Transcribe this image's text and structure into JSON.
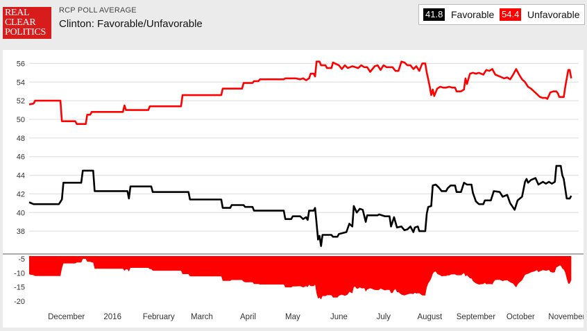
{
  "header": {
    "logo_lines": [
      "REAL",
      "CLEAR",
      "POLITICS"
    ],
    "subtitle": "RCP POLL AVERAGE",
    "title": "Clinton: Favorable/Unfavorable"
  },
  "legend": [
    {
      "value": "41.8",
      "label": "Favorable",
      "color": "#000000"
    },
    {
      "value": "54.4",
      "label": "Unfavorable",
      "color": "#ff0000"
    }
  ],
  "chart_data": {
    "type": "line",
    "x_type": "date",
    "x_ticks": [
      {
        "date": "2015-12-01",
        "label": "December"
      },
      {
        "date": "2016-01-01",
        "label": "2016"
      },
      {
        "date": "2016-02-01",
        "label": "February"
      },
      {
        "date": "2016-03-01",
        "label": "March"
      },
      {
        "date": "2016-04-01",
        "label": "April"
      },
      {
        "date": "2016-05-01",
        "label": "May"
      },
      {
        "date": "2016-06-01",
        "label": "June"
      },
      {
        "date": "2016-07-01",
        "label": "July"
      },
      {
        "date": "2016-08-01",
        "label": "August"
      },
      {
        "date": "2016-09-01",
        "label": "September"
      },
      {
        "date": "2016-10-01",
        "label": "October"
      },
      {
        "date": "2016-11-01",
        "label": "November"
      }
    ],
    "xlim": [
      "2015-11-06",
      "2016-11-09"
    ],
    "panels": [
      {
        "name": "main",
        "ylim": [
          36,
          57
        ],
        "yticks": [
          38,
          40,
          42,
          44,
          46,
          48,
          50,
          52,
          54,
          56
        ],
        "grid": true
      },
      {
        "name": "spread",
        "ylim": [
          -21,
          -4
        ],
        "yticks": [
          -5,
          -10,
          -15,
          -20
        ],
        "grid": false
      }
    ],
    "series": [
      {
        "name": "Favorable",
        "color": "#000000",
        "points": [
          [
            "2015-11-06",
            41.1
          ],
          [
            "2015-11-09",
            40.9
          ],
          [
            "2015-11-26",
            40.9
          ],
          [
            "2015-11-28",
            41.4
          ],
          [
            "2015-11-29",
            43.2
          ],
          [
            "2015-12-11",
            43.2
          ],
          [
            "2015-12-12",
            44.5
          ],
          [
            "2015-12-19",
            44.5
          ],
          [
            "2015-12-20",
            42.3
          ],
          [
            "2016-01-11",
            42.3
          ],
          [
            "2016-01-12",
            41.5
          ],
          [
            "2016-01-13",
            42.8
          ],
          [
            "2016-01-27",
            42.8
          ],
          [
            "2016-01-28",
            42.2
          ],
          [
            "2016-02-21",
            42.2
          ],
          [
            "2016-02-22",
            41.4
          ],
          [
            "2016-03-14",
            41.4
          ],
          [
            "2016-03-15",
            40.5
          ],
          [
            "2016-03-20",
            40.5
          ],
          [
            "2016-03-21",
            40.8
          ],
          [
            "2016-03-29",
            40.8
          ],
          [
            "2016-03-30",
            40.6
          ],
          [
            "2016-04-04",
            40.6
          ],
          [
            "2016-04-05",
            40.2
          ],
          [
            "2016-04-25",
            40.2
          ],
          [
            "2016-04-26",
            39.3
          ],
          [
            "2016-04-30",
            39.3
          ],
          [
            "2016-05-01",
            39.6
          ],
          [
            "2016-05-06",
            39.6
          ],
          [
            "2016-05-08",
            39.3
          ],
          [
            "2016-05-10",
            39.5
          ],
          [
            "2016-05-11",
            39.2
          ],
          [
            "2016-05-12",
            40.2
          ],
          [
            "2016-05-15",
            40.2
          ],
          [
            "2016-05-16",
            40.5
          ],
          [
            "2016-05-17",
            38.9
          ],
          [
            "2016-05-18",
            37.1
          ],
          [
            "2016-05-19",
            37.5
          ],
          [
            "2016-05-20",
            36.4
          ],
          [
            "2016-05-21",
            37.6
          ],
          [
            "2016-05-27",
            37.6
          ],
          [
            "2016-05-28",
            37.4
          ],
          [
            "2016-05-31",
            37.4
          ],
          [
            "2016-06-01",
            37.7
          ],
          [
            "2016-06-06",
            37.9
          ],
          [
            "2016-06-08",
            38.8
          ],
          [
            "2016-06-10",
            38.5
          ],
          [
            "2016-06-11",
            40.7
          ],
          [
            "2016-06-13",
            40.0
          ],
          [
            "2016-06-15",
            40.4
          ],
          [
            "2016-06-17",
            40.3
          ],
          [
            "2016-06-19",
            39.0
          ],
          [
            "2016-06-20",
            39.7
          ],
          [
            "2016-06-27",
            39.7
          ],
          [
            "2016-06-28",
            39.8
          ],
          [
            "2016-07-02",
            39.6
          ],
          [
            "2016-07-05",
            39.6
          ],
          [
            "2016-07-06",
            38.5
          ],
          [
            "2016-07-08",
            39.5
          ],
          [
            "2016-07-10",
            38.4
          ],
          [
            "2016-07-13",
            38.5
          ],
          [
            "2016-07-15",
            38.1
          ],
          [
            "2016-07-17",
            38.2
          ],
          [
            "2016-07-19",
            38.5
          ],
          [
            "2016-07-21",
            37.9
          ],
          [
            "2016-07-22",
            38.4
          ],
          [
            "2016-07-24",
            38.5
          ],
          [
            "2016-07-25",
            38.0
          ],
          [
            "2016-07-29",
            38.0
          ],
          [
            "2016-07-30",
            39.9
          ],
          [
            "2016-07-31",
            40.6
          ],
          [
            "2016-08-02",
            40.7
          ],
          [
            "2016-08-03",
            42.9
          ],
          [
            "2016-08-05",
            43.0
          ],
          [
            "2016-08-07",
            42.7
          ],
          [
            "2016-08-09",
            42.3
          ],
          [
            "2016-08-12",
            42.3
          ],
          [
            "2016-08-13",
            42.6
          ],
          [
            "2016-08-15",
            42.9
          ],
          [
            "2016-08-18",
            42.9
          ],
          [
            "2016-08-19",
            42.2
          ],
          [
            "2016-08-22",
            42.2
          ],
          [
            "2016-08-24",
            43.2
          ],
          [
            "2016-08-26",
            43.0
          ],
          [
            "2016-08-29",
            43.0
          ],
          [
            "2016-08-30",
            42.1
          ],
          [
            "2016-09-01",
            41.2
          ],
          [
            "2016-09-03",
            40.9
          ],
          [
            "2016-09-06",
            40.9
          ],
          [
            "2016-09-07",
            41.3
          ],
          [
            "2016-09-11",
            41.3
          ],
          [
            "2016-09-13",
            42.3
          ],
          [
            "2016-09-17",
            42.2
          ],
          [
            "2016-09-19",
            41.7
          ],
          [
            "2016-09-22",
            41.9
          ],
          [
            "2016-09-24",
            41.0
          ],
          [
            "2016-09-27",
            40.3
          ],
          [
            "2016-09-29",
            41.3
          ],
          [
            "2016-10-02",
            41.7
          ],
          [
            "2016-10-04",
            43.3
          ],
          [
            "2016-10-05",
            43.6
          ],
          [
            "2016-10-06",
            43.2
          ],
          [
            "2016-10-08",
            43.5
          ],
          [
            "2016-10-11",
            43.7
          ],
          [
            "2016-10-13",
            43.0
          ],
          [
            "2016-10-16",
            43.3
          ],
          [
            "2016-10-18",
            43.1
          ],
          [
            "2016-10-20",
            43.3
          ],
          [
            "2016-10-22",
            43.1
          ],
          [
            "2016-10-24",
            43.3
          ],
          [
            "2016-10-25",
            45.0
          ],
          [
            "2016-10-28",
            45.0
          ],
          [
            "2016-10-29",
            44.0
          ],
          [
            "2016-10-30",
            43.6
          ],
          [
            "2016-11-01",
            41.5
          ],
          [
            "2016-11-03",
            41.5
          ],
          [
            "2016-11-04",
            41.8
          ]
        ]
      },
      {
        "name": "Unfavorable",
        "color": "#ff0000",
        "points": [
          [
            "2015-11-06",
            51.6
          ],
          [
            "2015-11-09",
            51.7
          ],
          [
            "2015-11-10",
            52.0
          ],
          [
            "2015-11-27",
            52.0
          ],
          [
            "2015-11-28",
            49.8
          ],
          [
            "2015-12-07",
            49.8
          ],
          [
            "2015-12-08",
            49.5
          ],
          [
            "2015-12-14",
            49.5
          ],
          [
            "2015-12-15",
            50.5
          ],
          [
            "2015-12-17",
            50.5
          ],
          [
            "2015-12-18",
            50.8
          ],
          [
            "2016-01-08",
            50.8
          ],
          [
            "2016-01-09",
            51.5
          ],
          [
            "2016-01-10",
            51.0
          ],
          [
            "2016-01-25",
            51.0
          ],
          [
            "2016-01-26",
            51.4
          ],
          [
            "2016-02-16",
            51.4
          ],
          [
            "2016-02-17",
            52.6
          ],
          [
            "2016-03-14",
            52.6
          ],
          [
            "2016-03-15",
            53.3
          ],
          [
            "2016-03-28",
            53.3
          ],
          [
            "2016-03-29",
            53.9
          ],
          [
            "2016-04-04",
            53.9
          ],
          [
            "2016-04-05",
            54.1
          ],
          [
            "2016-04-08",
            54.1
          ],
          [
            "2016-04-09",
            54.3
          ],
          [
            "2016-04-25",
            54.3
          ],
          [
            "2016-04-26",
            54.4
          ],
          [
            "2016-05-03",
            54.4
          ],
          [
            "2016-05-06",
            54.3
          ],
          [
            "2016-05-08",
            54.4
          ],
          [
            "2016-05-10",
            54.2
          ],
          [
            "2016-05-12",
            54.4
          ],
          [
            "2016-05-13",
            54.9
          ],
          [
            "2016-05-15",
            54.9
          ],
          [
            "2016-05-16",
            54.6
          ],
          [
            "2016-05-17",
            56.2
          ],
          [
            "2016-05-19",
            56.2
          ],
          [
            "2016-05-20",
            55.8
          ],
          [
            "2016-05-23",
            55.8
          ],
          [
            "2016-05-24",
            55.5
          ],
          [
            "2016-05-27",
            55.5
          ],
          [
            "2016-05-28",
            56.1
          ],
          [
            "2016-06-01",
            55.8
          ],
          [
            "2016-06-03",
            55.4
          ],
          [
            "2016-06-05",
            55.8
          ],
          [
            "2016-06-07",
            55.5
          ],
          [
            "2016-06-10",
            55.7
          ],
          [
            "2016-06-12",
            55.6
          ],
          [
            "2016-06-14",
            55.5
          ],
          [
            "2016-06-16",
            55.8
          ],
          [
            "2016-06-18",
            55.6
          ],
          [
            "2016-06-20",
            55.6
          ],
          [
            "2016-06-22",
            55.1
          ],
          [
            "2016-06-25",
            55.7
          ],
          [
            "2016-06-27",
            55.8
          ],
          [
            "2016-06-29",
            55.3
          ],
          [
            "2016-07-01",
            55.8
          ],
          [
            "2016-07-03",
            55.6
          ],
          [
            "2016-07-05",
            55.6
          ],
          [
            "2016-07-07",
            55.6
          ],
          [
            "2016-07-09",
            55.2
          ],
          [
            "2016-07-11",
            55.2
          ],
          [
            "2016-07-13",
            56.2
          ],
          [
            "2016-07-15",
            56.1
          ],
          [
            "2016-07-17",
            55.8
          ],
          [
            "2016-07-19",
            55.8
          ],
          [
            "2016-07-21",
            55.4
          ],
          [
            "2016-07-23",
            55.7
          ],
          [
            "2016-07-25",
            55.2
          ],
          [
            "2016-07-27",
            56.0
          ],
          [
            "2016-07-29",
            56.0
          ],
          [
            "2016-07-30",
            55.0
          ],
          [
            "2016-07-31",
            54.3
          ],
          [
            "2016-08-01",
            53.5
          ],
          [
            "2016-08-02",
            52.6
          ],
          [
            "2016-08-03",
            53.2
          ],
          [
            "2016-08-04",
            52.5
          ],
          [
            "2016-08-06",
            53.3
          ],
          [
            "2016-08-08",
            53.5
          ],
          [
            "2016-08-10",
            53.4
          ],
          [
            "2016-08-12",
            53.4
          ],
          [
            "2016-08-14",
            53.5
          ],
          [
            "2016-08-16",
            53.4
          ],
          [
            "2016-08-18",
            53.4
          ],
          [
            "2016-08-19",
            53.0
          ],
          [
            "2016-08-22",
            53.0
          ],
          [
            "2016-08-24",
            53.2
          ],
          [
            "2016-08-25",
            54.4
          ],
          [
            "2016-08-26",
            53.8
          ],
          [
            "2016-08-28",
            54.9
          ],
          [
            "2016-08-30",
            55.0
          ],
          [
            "2016-09-01",
            54.9
          ],
          [
            "2016-09-03",
            55.0
          ],
          [
            "2016-09-06",
            54.8
          ],
          [
            "2016-09-08",
            55.3
          ],
          [
            "2016-09-10",
            55.2
          ],
          [
            "2016-09-12",
            55.4
          ],
          [
            "2016-09-14",
            54.8
          ],
          [
            "2016-09-17",
            54.6
          ],
          [
            "2016-09-20",
            54.4
          ],
          [
            "2016-09-22",
            54.5
          ],
          [
            "2016-09-24",
            54.3
          ],
          [
            "2016-09-26",
            54.8
          ],
          [
            "2016-09-28",
            55.4
          ],
          [
            "2016-09-30",
            54.8
          ],
          [
            "2016-10-02",
            54.3
          ],
          [
            "2016-10-04",
            54.0
          ],
          [
            "2016-10-06",
            53.5
          ],
          [
            "2016-10-08",
            53.3
          ],
          [
            "2016-10-10",
            53.0
          ],
          [
            "2016-10-12",
            52.7
          ],
          [
            "2016-10-14",
            52.4
          ],
          [
            "2016-10-16",
            52.3
          ],
          [
            "2016-10-18",
            52.3
          ],
          [
            "2016-10-19",
            52.2
          ],
          [
            "2016-10-21",
            52.9
          ],
          [
            "2016-10-23",
            53.0
          ],
          [
            "2016-10-25",
            53.0
          ],
          [
            "2016-10-26",
            52.8
          ],
          [
            "2016-10-27",
            52.4
          ],
          [
            "2016-10-30",
            52.4
          ],
          [
            "2016-10-31",
            53.5
          ],
          [
            "2016-11-02",
            55.3
          ],
          [
            "2016-11-03",
            55.3
          ],
          [
            "2016-11-04",
            54.4
          ]
        ]
      }
    ],
    "spread": {
      "fill": "#ff0000",
      "description": "Favorable minus Unfavorable"
    }
  }
}
